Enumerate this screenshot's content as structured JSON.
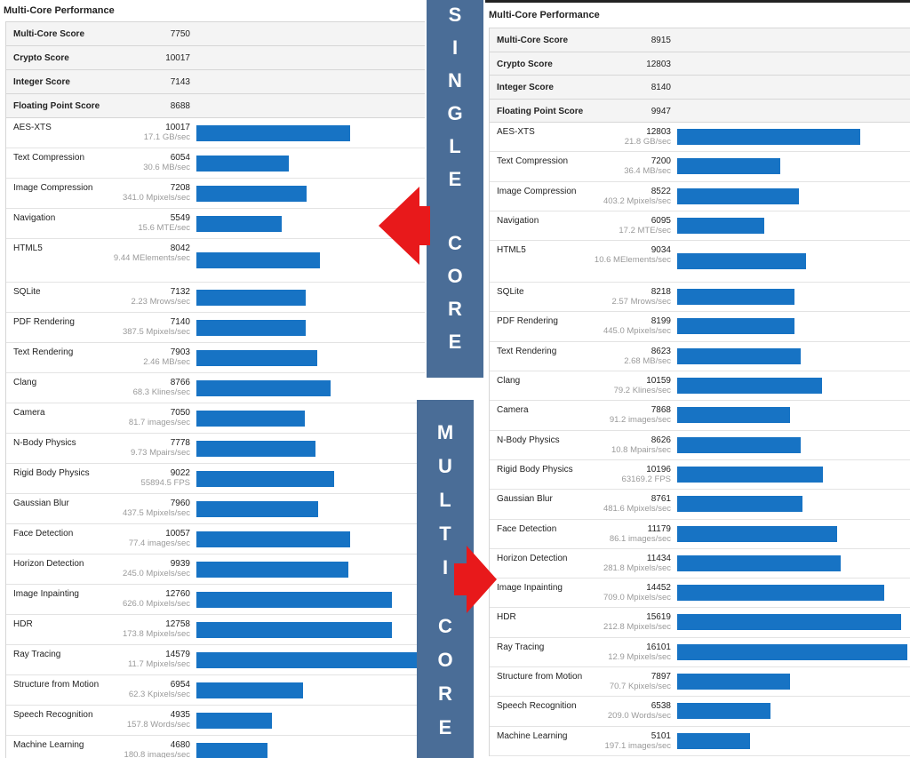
{
  "left": {
    "title": "Multi-Core Performance",
    "summary": [
      {
        "label": "Multi-Core Score",
        "value": "7750"
      },
      {
        "label": "Crypto Score",
        "value": "10017"
      },
      {
        "label": "Integer Score",
        "value": "7143"
      },
      {
        "label": "Floating Point Score",
        "value": "8688"
      }
    ],
    "rows": [
      {
        "name": "AES-XTS",
        "score": "10017",
        "sub": "17.1 GB/sec",
        "bar": 0.669
      },
      {
        "name": "Text Compression",
        "score": "6054",
        "sub": "30.6 MB/sec",
        "bar": 0.404
      },
      {
        "name": "Image Compression",
        "score": "7208",
        "sub": "341.0 Mpixels/sec",
        "bar": 0.481
      },
      {
        "name": "Navigation",
        "score": "5549",
        "sub": "15.6 MTE/sec",
        "bar": 0.371
      },
      {
        "name": "HTML5",
        "score": "8042",
        "sub": "9.44 MElements/sec",
        "bar": 0.537
      },
      {
        "name": "SQLite",
        "score": "7132",
        "sub": "2.23 Mrows/sec",
        "bar": 0.476
      },
      {
        "name": "PDF Rendering",
        "score": "7140",
        "sub": "387.5 Mpixels/sec",
        "bar": 0.477
      },
      {
        "name": "Text Rendering",
        "score": "7903",
        "sub": "2.46 MB/sec",
        "bar": 0.528
      },
      {
        "name": "Clang",
        "score": "8766",
        "sub": "68.3 Klines/sec",
        "bar": 0.585
      },
      {
        "name": "Camera",
        "score": "7050",
        "sub": "81.7 images/sec",
        "bar": 0.471
      },
      {
        "name": "N-Body Physics",
        "score": "7778",
        "sub": "9.73 Mpairs/sec",
        "bar": 0.519
      },
      {
        "name": "Rigid Body Physics",
        "score": "9022",
        "sub": "55894.5 FPS",
        "bar": 0.602
      },
      {
        "name": "Gaussian Blur",
        "score": "7960",
        "sub": "437.5 Mpixels/sec",
        "bar": 0.531
      },
      {
        "name": "Face Detection",
        "score": "10057",
        "sub": "77.4 images/sec",
        "bar": 0.671
      },
      {
        "name": "Horizon Detection",
        "score": "9939",
        "sub": "245.0 Mpixels/sec",
        "bar": 0.664
      },
      {
        "name": "Image Inpainting",
        "score": "12760",
        "sub": "626.0 Mpixels/sec",
        "bar": 0.852
      },
      {
        "name": "HDR",
        "score": "12758",
        "sub": "173.8 Mpixels/sec",
        "bar": 0.852
      },
      {
        "name": "Ray Tracing",
        "score": "14579",
        "sub": "11.7 Mpixels/sec",
        "bar": 0.973
      },
      {
        "name": "Structure from Motion",
        "score": "6954",
        "sub": "62.3 Kpixels/sec",
        "bar": 0.464
      },
      {
        "name": "Speech Recognition",
        "score": "4935",
        "sub": "157.8 Words/sec",
        "bar": 0.33
      },
      {
        "name": "Machine Learning",
        "score": "4680",
        "sub": "180.8 images/sec",
        "bar": 0.312
      }
    ]
  },
  "right": {
    "title": "Multi-Core Performance",
    "summary": [
      {
        "label": "Multi-Core Score",
        "value": "8915"
      },
      {
        "label": "Crypto Score",
        "value": "12803"
      },
      {
        "label": "Integer Score",
        "value": "8140"
      },
      {
        "label": "Floating Point Score",
        "value": "9947"
      }
    ],
    "rows": [
      {
        "name": "AES-XTS",
        "score": "12803",
        "sub": "21.8 GB/sec",
        "bar": 0.787
      },
      {
        "name": "Text Compression",
        "score": "7200",
        "sub": "36.4 MB/sec",
        "bar": 0.442
      },
      {
        "name": "Image Compression",
        "score": "8522",
        "sub": "403.2 Mpixels/sec",
        "bar": 0.524
      },
      {
        "name": "Navigation",
        "score": "6095",
        "sub": "17.2 MTE/sec",
        "bar": 0.374
      },
      {
        "name": "HTML5",
        "score": "9034",
        "sub": "10.6 MElements/sec",
        "bar": 0.555
      },
      {
        "name": "SQLite",
        "score": "8218",
        "sub": "2.57 Mrows/sec",
        "bar": 0.505
      },
      {
        "name": "PDF Rendering",
        "score": "8199",
        "sub": "445.0 Mpixels/sec",
        "bar": 0.504
      },
      {
        "name": "Text Rendering",
        "score": "8623",
        "sub": "2.68 MB/sec",
        "bar": 0.53
      },
      {
        "name": "Clang",
        "score": "10159",
        "sub": "79.2 Klines/sec",
        "bar": 0.624
      },
      {
        "name": "Camera",
        "score": "7868",
        "sub": "91.2 images/sec",
        "bar": 0.483
      },
      {
        "name": "N-Body Physics",
        "score": "8626",
        "sub": "10.8 Mpairs/sec",
        "bar": 0.53
      },
      {
        "name": "Rigid Body Physics",
        "score": "10196",
        "sub": "63169.2 FPS",
        "bar": 0.626
      },
      {
        "name": "Gaussian Blur",
        "score": "8761",
        "sub": "481.6 Mpixels/sec",
        "bar": 0.538
      },
      {
        "name": "Face Detection",
        "score": "11179",
        "sub": "86.1 images/sec",
        "bar": 0.687
      },
      {
        "name": "Horizon Detection",
        "score": "11434",
        "sub": "281.8 Mpixels/sec",
        "bar": 0.702
      },
      {
        "name": "Image Inpainting",
        "score": "14452",
        "sub": "709.0 Mpixels/sec",
        "bar": 0.888
      },
      {
        "name": "HDR",
        "score": "15619",
        "sub": "212.8 Mpixels/sec",
        "bar": 0.96
      },
      {
        "name": "Ray Tracing",
        "score": "16101",
        "sub": "12.9 Mpixels/sec",
        "bar": 0.989
      },
      {
        "name": "Structure from Motion",
        "score": "7897",
        "sub": "70.7 Kpixels/sec",
        "bar": 0.485
      },
      {
        "name": "Speech Recognition",
        "score": "6538",
        "sub": "209.0 Words/sec",
        "bar": 0.402
      },
      {
        "name": "Machine Learning",
        "score": "5101",
        "sub": "197.1 images/sec",
        "bar": 0.313
      }
    ]
  },
  "banners": {
    "single": [
      "S",
      "I",
      "N",
      "G",
      "L",
      "E",
      "C",
      "O",
      "R",
      "E"
    ],
    "multi": [
      "M",
      "U",
      "L",
      "T",
      "I",
      "C",
      "O",
      "R",
      "E"
    ]
  },
  "colors": {
    "bar": "#1773c4",
    "banner": "#4a6d97",
    "arrow": "#e8191b"
  }
}
